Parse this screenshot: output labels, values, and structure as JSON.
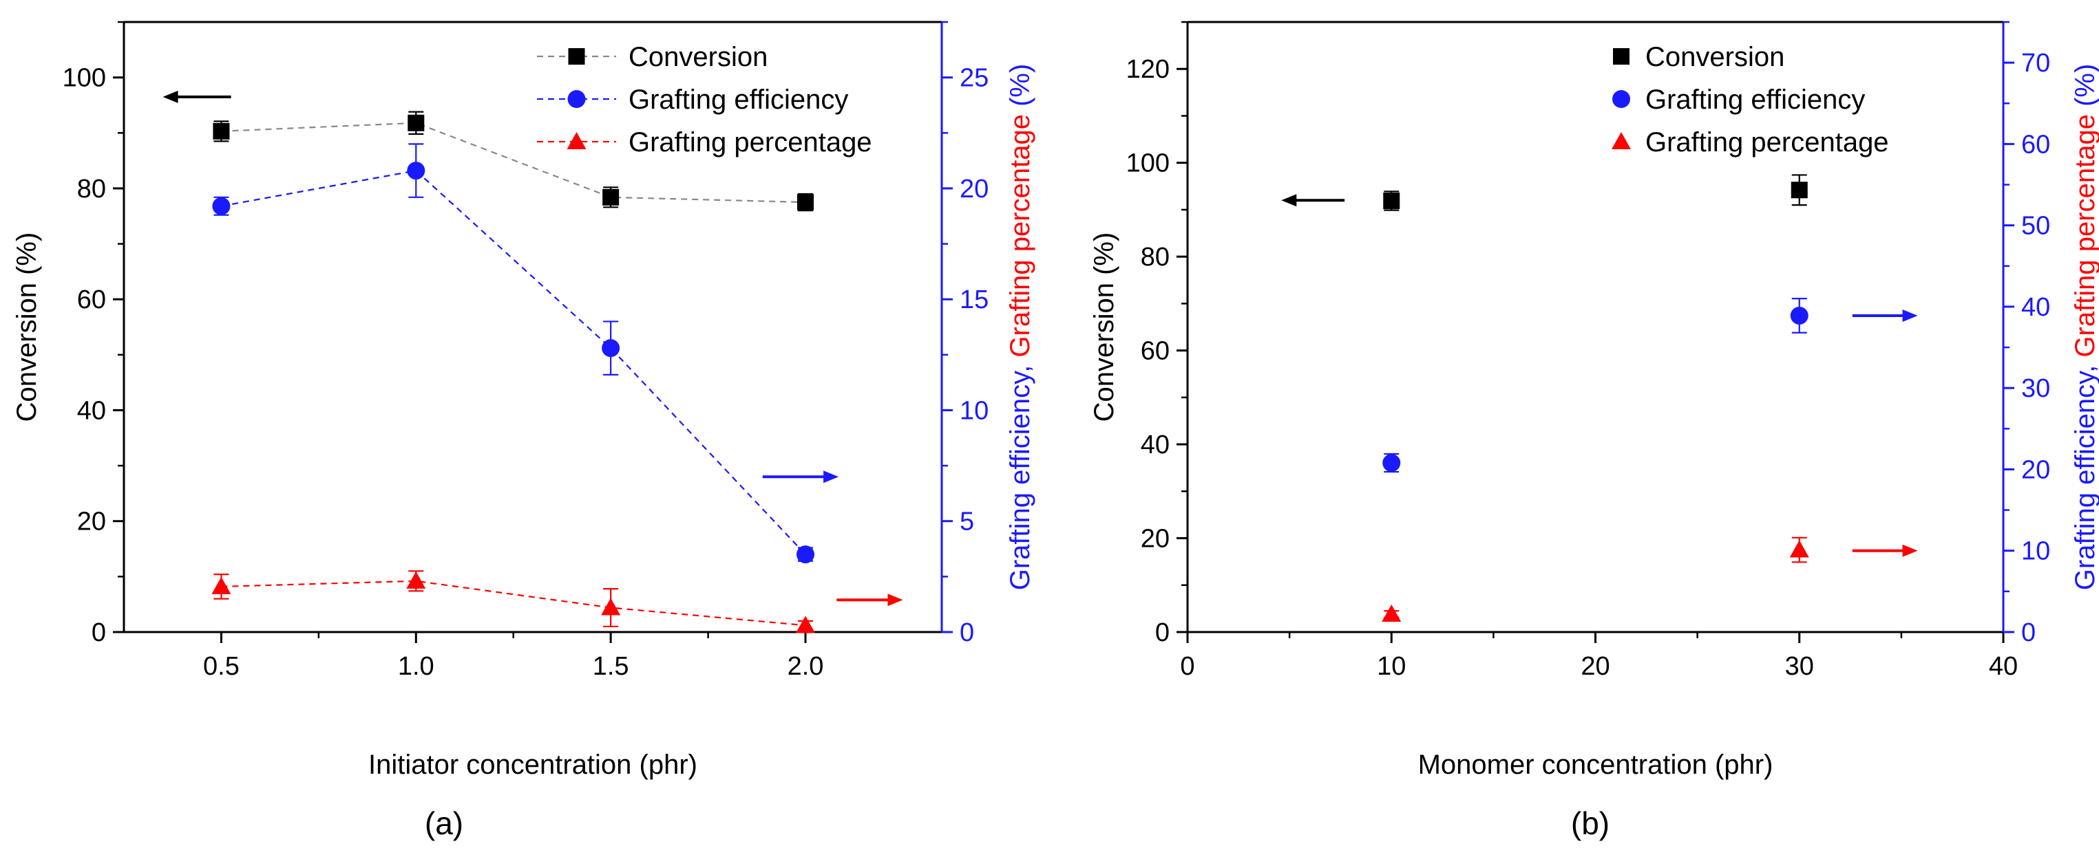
{
  "colors": {
    "black": "#000000",
    "blue": "#1a1aff",
    "red": "#ff0000",
    "axis_blue": "#1a1aff",
    "dash_gray": "#888888"
  },
  "chart_data": [
    {
      "panel_label": "(a)",
      "type": "line",
      "xlabel": "Initiator concentration (phr)",
      "ylabel_left": "Conversion (%)",
      "ylabel_right_part1": "Grafting efficiency, ",
      "ylabel_right_part2": "Grafting percentage",
      "ylabel_right_part3": " (%)",
      "xlim": [
        0.25,
        2.35
      ],
      "ylim_left": [
        0,
        110
      ],
      "ylim_right": [
        0,
        27.5
      ],
      "xticks": [
        0.5,
        1.0,
        1.5,
        2.0
      ],
      "xtick_labels": [
        "0.5",
        "1.0",
        "1.5",
        "2.0"
      ],
      "yticks_left": [
        0,
        20,
        40,
        60,
        80,
        100
      ],
      "yticks_right": [
        0,
        5,
        10,
        15,
        20,
        25
      ],
      "legend_position": "top-right",
      "series": [
        {
          "name": "Conversion",
          "axis": "left",
          "marker": "square",
          "color": "#000000",
          "line": "dashed",
          "line_color": "#888888",
          "x": [
            0.5,
            1.0,
            1.5,
            2.0
          ],
          "y": [
            90.3,
            91.8,
            78.4,
            77.5
          ],
          "err": [
            1.8,
            2.0,
            1.8,
            1.5
          ]
        },
        {
          "name": "Grafting efficiency",
          "axis": "right",
          "marker": "circle",
          "color": "#1a1aff",
          "line": "dashed",
          "line_color": "#1a1aff",
          "x": [
            0.5,
            1.0,
            1.5,
            2.0
          ],
          "y": [
            19.2,
            20.8,
            12.8,
            3.5
          ],
          "err": [
            0.4,
            1.2,
            1.2,
            0.3
          ]
        },
        {
          "name": "Grafting percentage",
          "axis": "right",
          "marker": "triangle",
          "color": "#ff0000",
          "line": "dashed",
          "line_color": "#ff0000",
          "x": [
            0.5,
            1.0,
            1.5,
            2.0
          ],
          "y": [
            2.05,
            2.3,
            1.1,
            0.3
          ],
          "err": [
            0.55,
            0.45,
            0.85,
            0.2
          ]
        }
      ],
      "arrows": [
        {
          "direction": "left",
          "color": "#000000",
          "x": [
            0.35,
            0.525
          ],
          "y": 96.5,
          "axis": "left"
        },
        {
          "direction": "right",
          "color": "#1a1aff",
          "x": [
            1.89,
            2.085
          ],
          "y": 7.0,
          "axis": "right"
        },
        {
          "direction": "right",
          "color": "#ff0000",
          "x": [
            2.08,
            2.25
          ],
          "y": 1.45,
          "axis": "right"
        }
      ]
    },
    {
      "panel_label": "(b)",
      "type": "scatter",
      "xlabel": "Monomer concentration (phr)",
      "ylabel_left": "Conversion (%)",
      "ylabel_right_part1": "Grafting efficiency, ",
      "ylabel_right_part2": "Grafting percentage",
      "ylabel_right_part3": " (%)",
      "xlim": [
        0,
        40
      ],
      "ylim_left": [
        0,
        130
      ],
      "ylim_right": [
        0,
        75
      ],
      "xticks": [
        0,
        10,
        20,
        30,
        40
      ],
      "xtick_labels": [
        "0",
        "10",
        "20",
        "30",
        "40"
      ],
      "yticks_left": [
        0,
        20,
        40,
        60,
        80,
        100,
        120
      ],
      "yticks_right": [
        0,
        10,
        20,
        30,
        40,
        50,
        60,
        70
      ],
      "legend_position": "top-right",
      "series": [
        {
          "name": "Conversion",
          "axis": "left",
          "marker": "square",
          "color": "#000000",
          "x": [
            10,
            30
          ],
          "y": [
            91.9,
            94.2
          ],
          "err": [
            2.0,
            3.2
          ]
        },
        {
          "name": "Grafting efficiency",
          "axis": "right",
          "marker": "circle",
          "color": "#1a1aff",
          "x": [
            10,
            30
          ],
          "y": [
            20.8,
            38.9
          ],
          "err": [
            1.1,
            2.1
          ]
        },
        {
          "name": "Grafting percentage",
          "axis": "right",
          "marker": "triangle",
          "color": "#ff0000",
          "x": [
            10,
            30
          ],
          "y": [
            2.2,
            10.1
          ],
          "err": [
            0.4,
            1.5
          ]
        }
      ],
      "arrows": [
        {
          "direction": "left",
          "color": "#000000",
          "x": [
            4.6,
            7.7
          ],
          "y": 92,
          "axis": "left"
        },
        {
          "direction": "right",
          "color": "#1a1aff",
          "x": [
            32.6,
            35.8
          ],
          "y": 38.9,
          "axis": "right"
        },
        {
          "direction": "right",
          "color": "#ff0000",
          "x": [
            32.6,
            35.8
          ],
          "y": 10,
          "axis": "right"
        }
      ]
    }
  ]
}
